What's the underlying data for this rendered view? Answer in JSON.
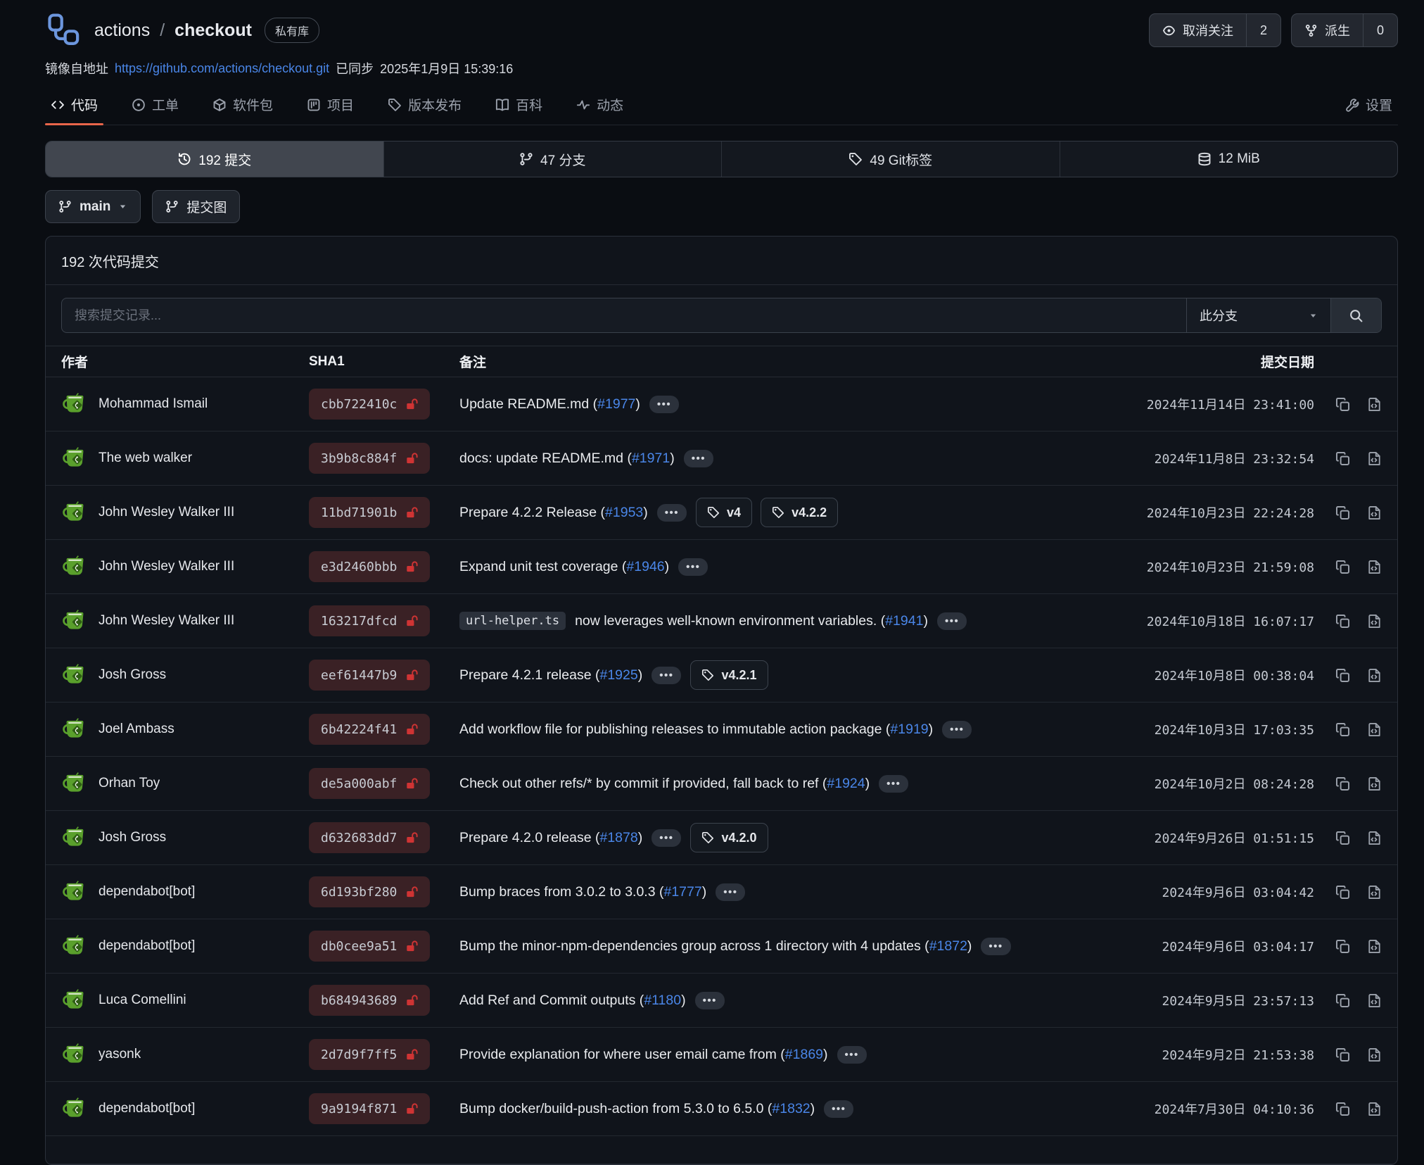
{
  "accent_colors": {
    "active_tab_underline": "#e8654a",
    "link_blue": "#4a86e8",
    "lock_red": "#cf3434",
    "sha_badge_bg": "#3a2125",
    "logo_blue": "#6c96dd",
    "avatar_green": "#5aa02c"
  },
  "header": {
    "logo_icon": "repo-logo-icon",
    "repo_org": "actions",
    "separator": "/",
    "repo_name": "checkout",
    "visibility_badge": "私有库",
    "unwatch_button": {
      "icon": "eye-icon",
      "label": "取消关注",
      "count": "2"
    },
    "fork_button": {
      "icon": "fork-icon",
      "label": "派生",
      "count": "0"
    },
    "mirror_prefix": "镜像自地址",
    "mirror_url": "https://github.com/actions/checkout.git",
    "mirror_synced_label": "已同步",
    "mirror_synced_time": "2025年1月9日 15:39:16"
  },
  "nav": {
    "tabs": [
      {
        "icon": "code-icon",
        "label": "代码",
        "active": true
      },
      {
        "icon": "issue-icon",
        "label": "工单",
        "active": false
      },
      {
        "icon": "package-icon",
        "label": "软件包",
        "active": false
      },
      {
        "icon": "project-icon",
        "label": "项目",
        "active": false
      },
      {
        "icon": "tag-icon",
        "label": "版本发布",
        "active": false
      },
      {
        "icon": "book-icon",
        "label": "百科",
        "active": false
      },
      {
        "icon": "activity-icon",
        "label": "动态",
        "active": false
      }
    ],
    "settings_tab": {
      "icon": "wrench-icon",
      "label": "设置"
    }
  },
  "summary": [
    {
      "icon": "history-icon",
      "text": "192 提交",
      "active": true
    },
    {
      "icon": "branch-icon",
      "text": "47 分支",
      "active": false
    },
    {
      "icon": "tag-icon",
      "text": "49 Git标签",
      "active": false
    },
    {
      "icon": "database-icon",
      "text": "12 MiB",
      "active": false
    }
  ],
  "toolbar": {
    "branch_button": {
      "icon": "branch-icon",
      "label": "main",
      "caret": "caret-down-icon"
    },
    "graph_button": {
      "icon": "graph-icon",
      "label": "提交图"
    }
  },
  "commits_panel": {
    "title": "192 次代码提交",
    "search_placeholder": "搜索提交记录...",
    "branch_filter_label": "此分支",
    "search_icon": "search-icon",
    "columns": [
      "作者",
      "SHA1",
      "备注",
      "提交日期"
    ],
    "row_icons": [
      "copy-icon",
      "file-code-icon"
    ],
    "rows": [
      {
        "author": "Mohammad Ismail",
        "sha": "cbb722410c",
        "code": null,
        "msg": "Update README.md",
        "issue": "#1977",
        "ellipsis": false,
        "tags": [],
        "date": "2024年11月14日",
        "time": "23:41:00"
      },
      {
        "author": "The web walker",
        "sha": "3b9b8c884f",
        "code": null,
        "msg": "docs: update README.md",
        "issue": "#1971",
        "ellipsis": true,
        "tags": [],
        "date": "2024年11月8日",
        "time": "23:32:54"
      },
      {
        "author": "John Wesley Walker III",
        "sha": "11bd71901b",
        "code": null,
        "msg": "Prepare 4.2.2 Release",
        "issue": "#1953",
        "ellipsis": true,
        "tags": [
          "v4",
          "v4.2.2"
        ],
        "date": "2024年10月23日",
        "time": "22:24:28"
      },
      {
        "author": "John Wesley Walker III",
        "sha": "e3d2460bbb",
        "code": null,
        "msg": "Expand unit test coverage",
        "issue": "#1946",
        "ellipsis": false,
        "tags": [],
        "date": "2024年10月23日",
        "time": "21:59:08"
      },
      {
        "author": "John Wesley Walker III",
        "sha": "163217dfcd",
        "code": "url-helper.ts",
        "msg": "now leverages well-known environment variables.",
        "issue": "#1941",
        "ellipsis": true,
        "tags": [],
        "date": "2024年10月18日",
        "time": "16:07:17"
      },
      {
        "author": "Josh Gross",
        "sha": "eef61447b9",
        "code": null,
        "msg": "Prepare 4.2.1 release",
        "issue": "#1925",
        "ellipsis": false,
        "tags": [
          "v4.2.1"
        ],
        "date": "2024年10月8日",
        "time": "00:38:04"
      },
      {
        "author": "Joel Ambass",
        "sha": "6b42224f41",
        "code": null,
        "msg": "Add workflow file for publishing releases to immutable action package",
        "issue": "#1919",
        "ellipsis": true,
        "tags": [],
        "date": "2024年10月3日",
        "time": "17:03:35"
      },
      {
        "author": "Orhan Toy",
        "sha": "de5a000abf",
        "code": null,
        "msg": "Check out other refs/* by commit if provided, fall back to ref",
        "issue": "#1924",
        "ellipsis": false,
        "tags": [],
        "date": "2024年10月2日",
        "time": "08:24:28"
      },
      {
        "author": "Josh Gross",
        "sha": "d632683dd7",
        "code": null,
        "msg": "Prepare 4.2.0 release",
        "issue": "#1878",
        "ellipsis": true,
        "tags": [
          "v4.2.0"
        ],
        "date": "2024年9月26日",
        "time": "01:51:15"
      },
      {
        "author": "dependabot[bot]",
        "sha": "6d193bf280",
        "code": null,
        "msg": "Bump braces from 3.0.2 to 3.0.3",
        "issue": "#1777",
        "ellipsis": true,
        "tags": [],
        "date": "2024年9月6日",
        "time": "03:04:42"
      },
      {
        "author": "dependabot[bot]",
        "sha": "db0cee9a51",
        "code": null,
        "msg": "Bump the minor-npm-dependencies group across 1 directory with 4 updates",
        "issue": "#1872",
        "ellipsis": true,
        "tags": [],
        "date": "2024年9月6日",
        "time": "03:04:17"
      },
      {
        "author": "Luca Comellini",
        "sha": "b684943689",
        "code": null,
        "msg": "Add Ref and Commit outputs",
        "issue": "#1180",
        "ellipsis": true,
        "tags": [],
        "date": "2024年9月5日",
        "time": "23:57:13"
      },
      {
        "author": "yasonk",
        "sha": "2d7d9f7ff5",
        "code": null,
        "msg": "Provide explanation for where user email came from",
        "issue": "#1869",
        "ellipsis": true,
        "tags": [],
        "date": "2024年9月2日",
        "time": "21:53:38"
      },
      {
        "author": "dependabot[bot]",
        "sha": "9a9194f871",
        "code": null,
        "msg": "Bump docker/build-push-action from 5.3.0 to 6.5.0",
        "issue": "#1832",
        "ellipsis": true,
        "tags": [],
        "date": "2024年7月30日",
        "time": "04:10:36"
      }
    ]
  }
}
